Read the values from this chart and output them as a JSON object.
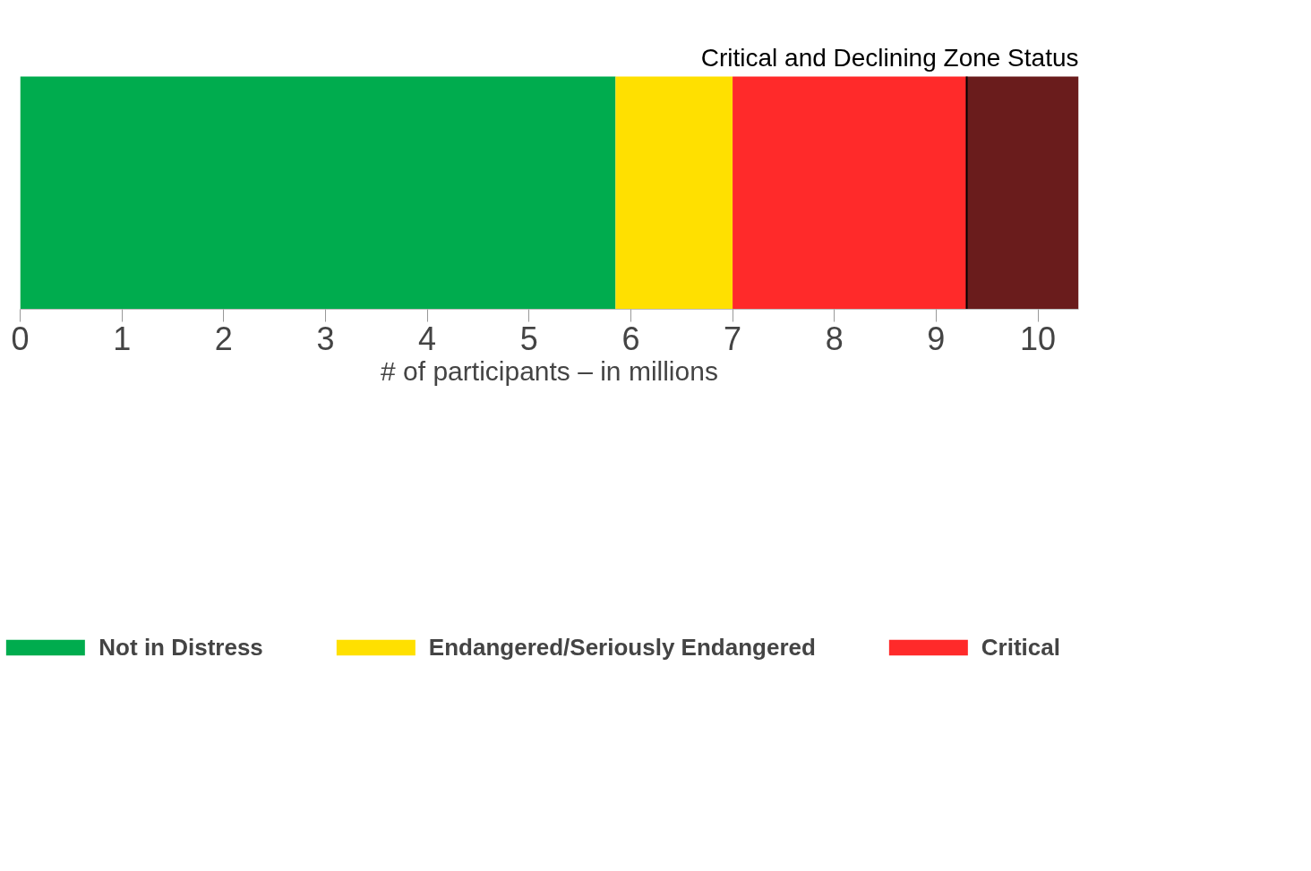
{
  "chart_data": {
    "type": "bar",
    "orientation": "horizontal",
    "stacked": true,
    "categories": [
      null
    ],
    "xlabel": "# of participants – in millions",
    "xlim": [
      0,
      10.4
    ],
    "xticks": [
      0,
      1,
      2,
      3,
      4,
      5,
      6,
      7,
      8,
      9,
      10
    ],
    "series": [
      {
        "name": "Not in Distress",
        "color": "#00ac4e",
        "values": [
          5.85
        ]
      },
      {
        "name": "Endangered/Seriously Endangered",
        "color": "#ffe000",
        "values": [
          1.15
        ]
      },
      {
        "name": "Critical",
        "color": "#ff2a2a",
        "values": [
          2.3
        ]
      },
      {
        "name": "Critical and Declining Zone Status",
        "color": "#6a1c1c",
        "values": [
          1.1
        ]
      }
    ],
    "ref_lines": [
      {
        "axis": "x",
        "value": 9.3,
        "color": "#000000"
      }
    ],
    "legend": "bottom",
    "grid": false,
    "tick_labels": "x"
  }
}
